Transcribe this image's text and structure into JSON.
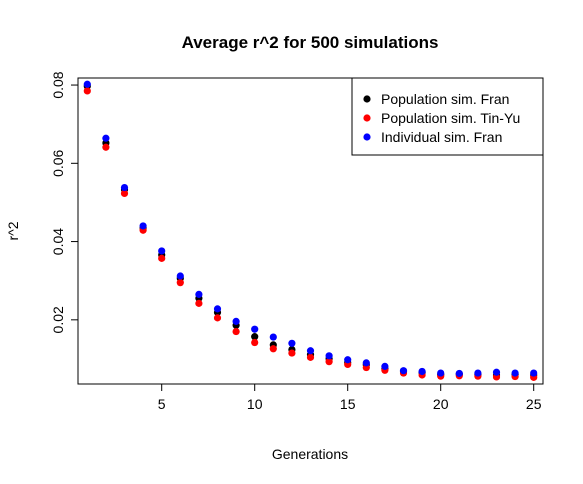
{
  "chart_data": {
    "type": "scatter",
    "title": "Average r^2 for 500 simulations",
    "xlabel": "Generations",
    "ylabel": "r^2",
    "xlim": [
      0.5,
      25.5
    ],
    "ylim": [
      0.0036,
      0.0818
    ],
    "xticks": [
      5,
      10,
      15,
      20,
      25
    ],
    "yticks": [
      0.02,
      0.04,
      0.06,
      0.08
    ],
    "ytick_labels": [
      "0.02",
      "0.04",
      "0.06",
      "0.08"
    ],
    "grid": false,
    "legend_position": "top-right",
    "x": [
      1,
      2,
      3,
      4,
      5,
      6,
      7,
      8,
      9,
      10,
      11,
      12,
      13,
      14,
      15,
      16,
      17,
      18,
      19,
      20,
      21,
      22,
      23,
      24,
      25
    ],
    "series": [
      {
        "name": "Population sim. Fran",
        "color": "#000000",
        "values": [
          0.0797,
          0.0652,
          0.0533,
          0.0435,
          0.0366,
          0.0306,
          0.0255,
          0.0219,
          0.0186,
          0.0157,
          0.0136,
          0.0124,
          0.0111,
          0.0101,
          0.0091,
          0.0085,
          0.0075,
          0.0068,
          0.0065,
          0.006,
          0.0061,
          0.006,
          0.0059,
          0.006,
          0.0059
        ]
      },
      {
        "name": "Population sim. Tin-Yu",
        "color": "#ff0000",
        "values": [
          0.0785,
          0.0641,
          0.0523,
          0.0429,
          0.0357,
          0.0295,
          0.0242,
          0.0205,
          0.017,
          0.0142,
          0.0126,
          0.0115,
          0.0104,
          0.0093,
          0.0086,
          0.0078,
          0.0071,
          0.0064,
          0.0059,
          0.0056,
          0.0057,
          0.0056,
          0.0054,
          0.0055,
          0.0053
        ]
      },
      {
        "name": "Individual sim. Fran",
        "color": "#0000ff",
        "values": [
          0.0802,
          0.0664,
          0.0538,
          0.044,
          0.0376,
          0.0312,
          0.0265,
          0.0228,
          0.0196,
          0.0176,
          0.0156,
          0.014,
          0.0121,
          0.0108,
          0.0098,
          0.009,
          0.0081,
          0.007,
          0.0068,
          0.0064,
          0.0063,
          0.0064,
          0.0066,
          0.0064,
          0.0064
        ]
      }
    ]
  }
}
